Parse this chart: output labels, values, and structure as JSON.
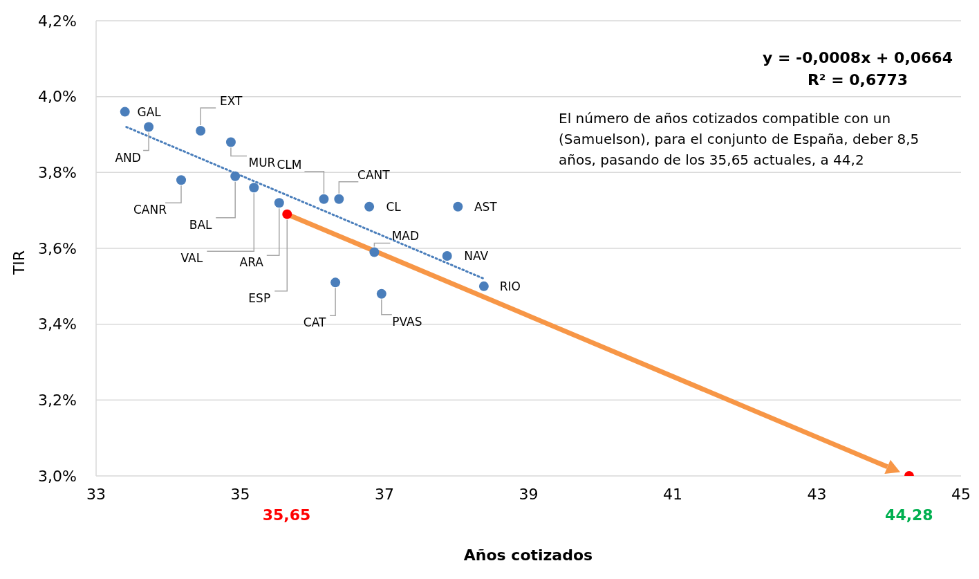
{
  "chart_data": {
    "type": "scatter",
    "xlabel": "Años cotizados",
    "ylabel": "TIR",
    "series": [
      {
        "color": "#4a7ebb",
        "marker": "circle",
        "x": [
          33.4,
          33.73,
          34.45,
          34.87,
          34.18,
          34.93,
          35.19,
          35.54,
          35.65,
          36.16,
          36.37,
          36.79,
          38.02,
          36.86,
          37.87,
          38.38,
          36.32,
          36.96,
          44.28
        ],
        "values": [
          3.96,
          3.92,
          3.91,
          3.88,
          3.78,
          3.79,
          3.76,
          3.72,
          3.69,
          3.73,
          3.73,
          3.71,
          3.71,
          3.59,
          3.58,
          3.5,
          3.51,
          3.48,
          3.0
        ],
        "colors": [
          "#4a7ebb",
          "#4a7ebb",
          "#4a7ebb",
          "#4a7ebb",
          "#4a7ebb",
          "#4a7ebb",
          "#4a7ebb",
          "#4a7ebb",
          "#ff0000",
          "#4a7ebb",
          "#4a7ebb",
          "#4a7ebb",
          "#4a7ebb",
          "#4a7ebb",
          "#4a7ebb",
          "#4a7ebb",
          "#4a7ebb",
          "#4a7ebb",
          "#ff0000"
        ]
      },
      {
        "type": "line",
        "color": "#4a7ebb",
        "line_style": "dotted",
        "marker": "none",
        "x": [
          33.42,
          38.38
        ],
        "values": [
          3.92,
          3.52
        ]
      }
    ],
    "xlim": [
      33,
      45
    ],
    "xticks": [
      33,
      35,
      37,
      39,
      41,
      43,
      45
    ],
    "ylim": [
      3.0,
      4.2
    ],
    "yticks": [
      {
        "value": 3.0,
        "label": "3,0%"
      },
      {
        "value": 3.2,
        "label": "3,2%"
      },
      {
        "value": 3.4,
        "label": "3,4%"
      },
      {
        "value": 3.6,
        "label": "3,6%"
      },
      {
        "value": 3.8,
        "label": "3,8%"
      },
      {
        "value": 4.0,
        "label": "4,0%"
      },
      {
        "value": 4.2,
        "label": "4,2%"
      }
    ],
    "grid": "y",
    "annotations": [
      {
        "text": "GAL",
        "x": 33.4,
        "y": 3.96
      },
      {
        "text": "AND",
        "x": 33.73,
        "y": 3.92
      },
      {
        "text": "EXT",
        "x": 34.45,
        "y": 3.91
      },
      {
        "text": "MUR",
        "x": 34.87,
        "y": 3.88
      },
      {
        "text": "CANR",
        "x": 34.18,
        "y": 3.78
      },
      {
        "text": "BAL",
        "x": 34.93,
        "y": 3.79
      },
      {
        "text": "VAL",
        "x": 35.19,
        "y": 3.76
      },
      {
        "text": "ARA",
        "x": 35.54,
        "y": 3.72
      },
      {
        "text": "ESP",
        "x": 35.65,
        "y": 3.69
      },
      {
        "text": "CLM",
        "x": 36.16,
        "y": 3.73
      },
      {
        "text": "CANT",
        "x": 36.37,
        "y": 3.73
      },
      {
        "text": "CL",
        "x": 36.79,
        "y": 3.71
      },
      {
        "text": "AST",
        "x": 38.02,
        "y": 3.71
      },
      {
        "text": "MAD",
        "x": 36.86,
        "y": 3.59
      },
      {
        "text": "NAV",
        "x": 37.87,
        "y": 3.58
      },
      {
        "text": "RIO",
        "x": 38.38,
        "y": 3.5
      },
      {
        "text": "CAT",
        "x": 36.32,
        "y": 3.51
      },
      {
        "text": "PVAS",
        "x": 36.96,
        "y": 3.48
      },
      "35,65",
      "44,28",
      "y = -0,0008x + 0,0664",
      "R² = 0,6773",
      "El número de años cotizados compatible con un (Samuelson), para el conjunto de España, deber 8,5 años, pasando de los 35,65 actuales, a 44,2"
    ]
  }
}
